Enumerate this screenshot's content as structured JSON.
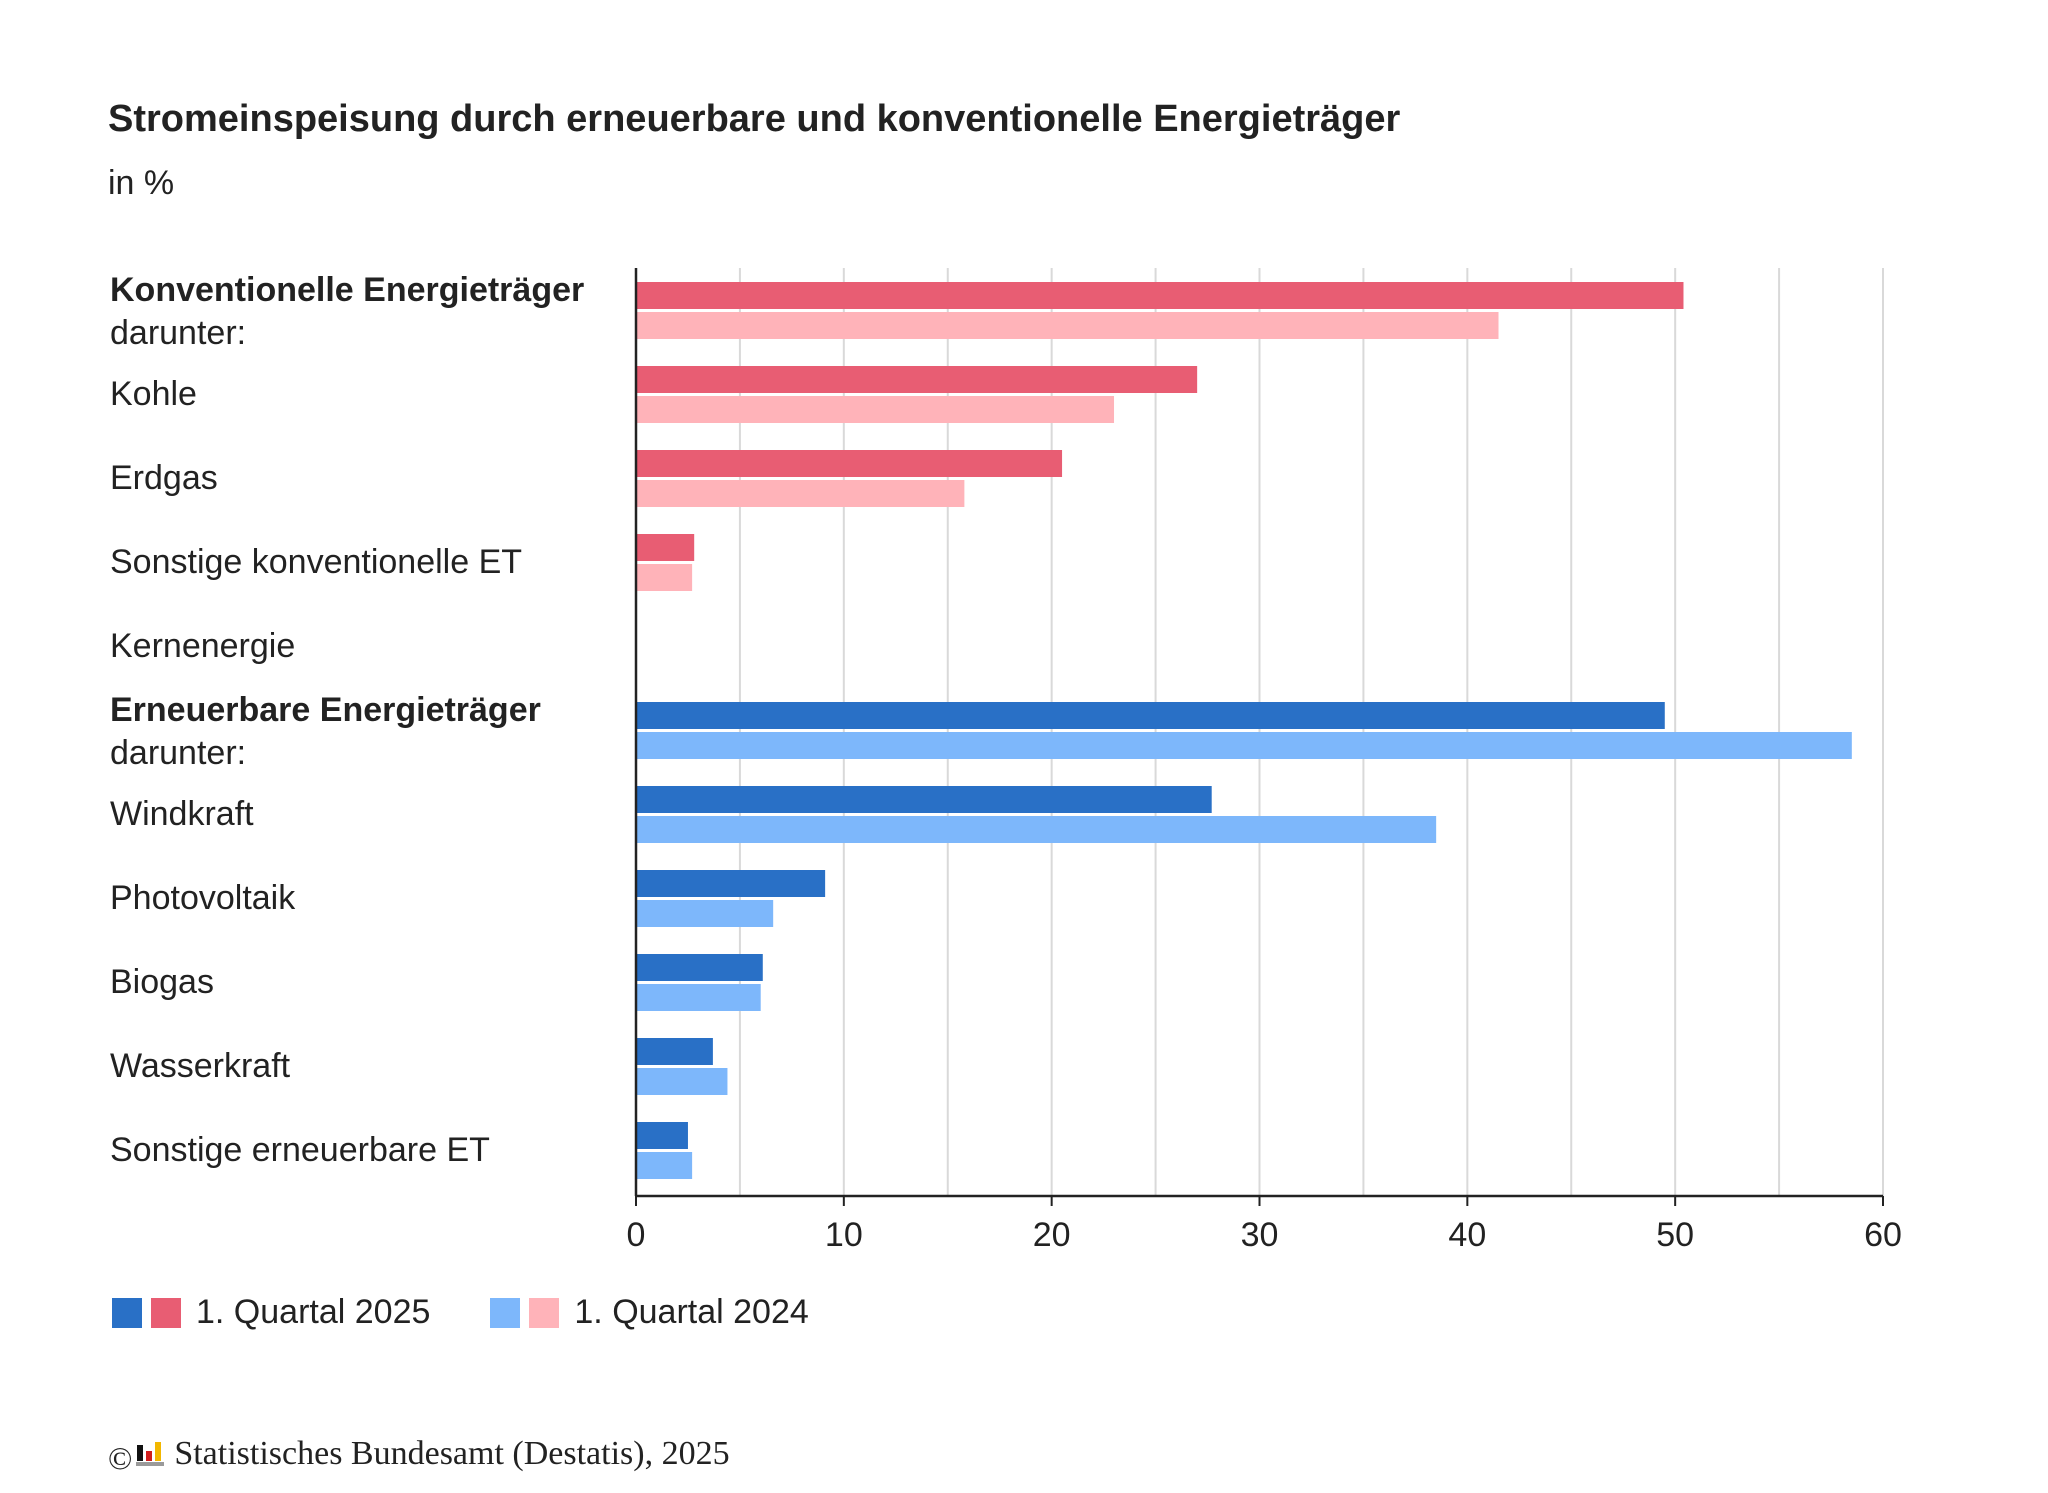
{
  "header": {
    "title": "Stromeinspeisung durch erneuerbare und konventionelle Energieträger",
    "subtitle": "in %"
  },
  "colors": {
    "conv_2025": "#e85d73",
    "conv_2024": "#ffb3b9",
    "ren_2025": "#2970c6",
    "ren_2024": "#7db7fb",
    "grid": "#d9d9d9",
    "axis": "#222222"
  },
  "chart_data": {
    "type": "bar",
    "orientation": "horizontal",
    "categories": [
      {
        "label": "Konventionelle Energieträger",
        "sublabel": "darunter:",
        "bold": true,
        "group": "conv"
      },
      {
        "label": "Kohle",
        "group": "conv"
      },
      {
        "label": "Erdgas",
        "group": "conv"
      },
      {
        "label": "Sonstige konventionelle ET",
        "group": "conv"
      },
      {
        "label": "Kernenergie",
        "group": "conv"
      },
      {
        "label": "Erneuerbare Energieträger",
        "sublabel": "darunter:",
        "bold": true,
        "group": "ren"
      },
      {
        "label": "Windkraft",
        "group": "ren"
      },
      {
        "label": "Photovoltaik",
        "group": "ren"
      },
      {
        "label": "Biogas",
        "group": "ren"
      },
      {
        "label": "Wasserkraft",
        "group": "ren"
      },
      {
        "label": "Sonstige erneuerbare ET",
        "group": "ren"
      }
    ],
    "series": [
      {
        "name": "1. Quartal 2025",
        "values": [
          50.4,
          27.0,
          20.5,
          2.8,
          0,
          49.5,
          27.7,
          9.1,
          6.1,
          3.7,
          2.5
        ]
      },
      {
        "name": "1. Quartal 2024",
        "values": [
          41.5,
          23.0,
          15.8,
          2.7,
          0,
          58.5,
          38.5,
          6.6,
          6.0,
          4.4,
          2.7
        ]
      }
    ],
    "xlim": [
      0,
      60
    ],
    "xticks": [
      0,
      10,
      20,
      30,
      40,
      50,
      60
    ],
    "grid": true,
    "legend_position": "bottom-left"
  },
  "legend": {
    "label_2025": "1. Quartal 2025",
    "label_2024": "1. Quartal 2024"
  },
  "footer": {
    "copyright_symbol": "©",
    "source": "Statistisches Bundesamt (Destatis), 2025"
  }
}
